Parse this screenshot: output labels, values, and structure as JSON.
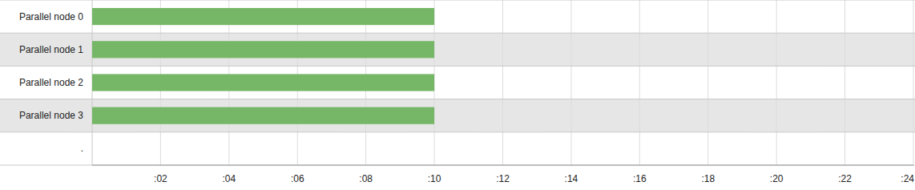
{
  "chart_data": {
    "type": "bar",
    "orientation": "horizontal",
    "categories": [
      "Parallel node 0",
      "Parallel node 1",
      "Parallel node 2",
      "Parallel node 3",
      "."
    ],
    "values": [
      10,
      10,
      10,
      10,
      null
    ],
    "color": "#76b767",
    "xlim": [
      0,
      24
    ],
    "xticks": [
      {
        "value": 2,
        "label": ":02"
      },
      {
        "value": 4,
        "label": ":04"
      },
      {
        "value": 6,
        "label": ":06"
      },
      {
        "value": 8,
        "label": ":08"
      },
      {
        "value": 10,
        "label": ":10"
      },
      {
        "value": 12,
        "label": ":12"
      },
      {
        "value": 14,
        "label": ":14"
      },
      {
        "value": 16,
        "label": ":16"
      },
      {
        "value": 18,
        "label": ":18"
      },
      {
        "value": 20,
        "label": ":20"
      },
      {
        "value": 22,
        "label": ":22"
      },
      {
        "value": 24,
        "label": ":24"
      }
    ],
    "grid": true
  }
}
